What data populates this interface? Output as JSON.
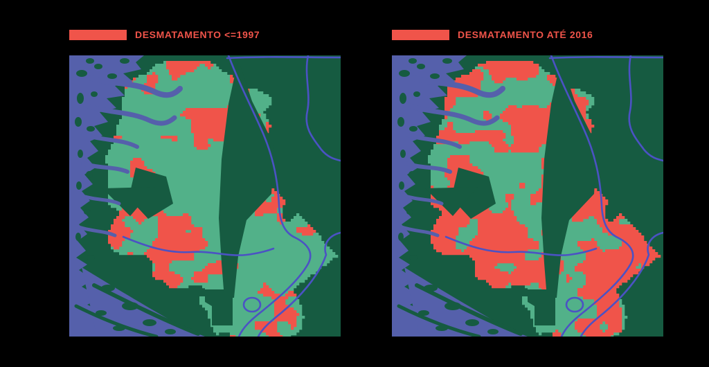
{
  "panels": [
    {
      "id": "map-1997",
      "label": "DESMATAMENTO <=1997"
    },
    {
      "id": "map-2016",
      "label": "DESMATAMENTO ATÉ 2016"
    }
  ],
  "colors": {
    "background": "#000000",
    "deforestation": "#f0544a",
    "forest": "#165b41",
    "secondary_vegetation": "#52b189",
    "water": "#5560ab",
    "river": "#4b52c4",
    "legend_text": "#f0544a"
  },
  "map_layers": [
    {
      "name": "deforestation",
      "color": "#f0544a"
    },
    {
      "name": "forest",
      "color": "#165b41"
    },
    {
      "name": "secondary-vegetation",
      "color": "#52b189"
    },
    {
      "name": "water",
      "color": "#5560ab"
    },
    {
      "name": "river-lines",
      "color": "#4b52c4"
    }
  ]
}
